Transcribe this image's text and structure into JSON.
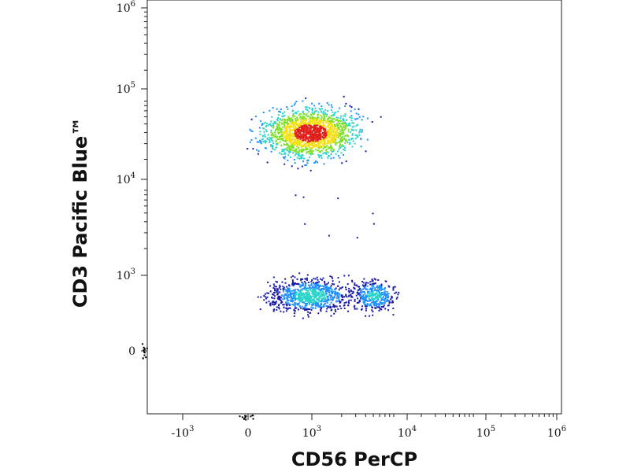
{
  "chart_data": {
    "type": "scatter",
    "subtype": "flow-cytometry density dot plot",
    "xlabel": "CD56 PerCP",
    "ylabel": "CD3 Pacific Blue™",
    "x_scale": "biexponential",
    "y_scale": "biexponential",
    "x_ticks": [
      {
        "base": "-10",
        "exp": "3",
        "value": -1000
      },
      {
        "base": "0",
        "exp": "",
        "value": 0
      },
      {
        "base": "10",
        "exp": "3",
        "value": 1000
      },
      {
        "base": "10",
        "exp": "4",
        "value": 10000
      },
      {
        "base": "10",
        "exp": "5",
        "value": 100000
      },
      {
        "base": "10",
        "exp": "6",
        "value": 1000000
      }
    ],
    "y_ticks": [
      {
        "base": "0",
        "exp": "",
        "value": 0
      },
      {
        "base": "10",
        "exp": "3",
        "value": 1000
      },
      {
        "base": "10",
        "exp": "4",
        "value": 10000
      },
      {
        "base": "10",
        "exp": "5",
        "value": 100000
      },
      {
        "base": "10",
        "exp": "6",
        "value": 1000000
      }
    ],
    "grid": false,
    "legend": "none",
    "color_scale": "density (blue to cyan to green to yellow to red)",
    "populations": [
      {
        "cd56_center": 800,
        "cd3_center": 40000,
        "density": "high"
      },
      {
        "cd56_center": 800,
        "cd3_center": 600,
        "density": "medium"
      },
      {
        "cd56_center": 5000,
        "cd3_center": 600,
        "density": "low"
      }
    ]
  },
  "colors": {
    "density_low": "#1a1aa8",
    "density_mid_low": "#1e90ff",
    "density_mid": "#2ad4c8",
    "density_mid_high": "#7fe02a",
    "density_high": "#f2e01a",
    "density_peak": "#e0201a",
    "axis": "#222222"
  }
}
